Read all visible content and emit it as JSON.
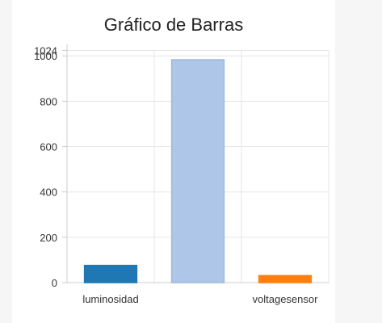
{
  "chart_data": {
    "type": "bar",
    "title": "Gráfico de Barras",
    "categories": [
      "luminosidad",
      "",
      "voltagesensor"
    ],
    "values": [
      76,
      983,
      31
    ],
    "colors": [
      "#1f77b4",
      "#aec7e8",
      "#ff7f0e"
    ],
    "bar_stroke_colors": [
      "#1f77b4",
      "#9fb8d8",
      "#ff7f0e"
    ],
    "ylim": [
      0,
      1024
    ],
    "yticks": [
      0,
      200,
      400,
      600,
      800,
      1000,
      1024
    ],
    "ytick_labels": [
      "0",
      "200",
      "400",
      "600",
      "800",
      "1000",
      "1024"
    ],
    "xlabel": "",
    "ylabel": "",
    "grid": true
  },
  "theme": {
    "page_background": "#f6f6f6",
    "panel_background": "#ffffff",
    "grid_color": "#e6e6e6",
    "axis_color": "#cccccc"
  }
}
